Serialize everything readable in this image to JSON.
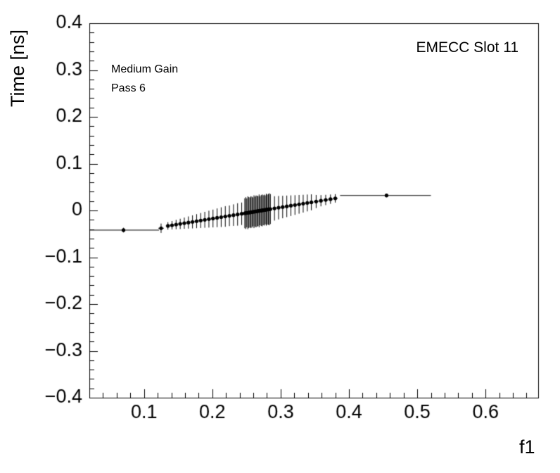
{
  "chart_data": {
    "type": "scatter",
    "title": "",
    "xlabel": "f1",
    "ylabel": "Time [ns]",
    "annotations": {
      "corner": "EMECC Slot 11",
      "line1": "Medium Gain",
      "line2": "Pass 6"
    },
    "legend": "none",
    "grid": false,
    "xlim": [
      0.02,
      0.677
    ],
    "ylim": [
      -0.4,
      0.4
    ],
    "x_ticks": {
      "values": [
        0.1,
        0.2,
        0.3,
        0.4,
        0.5,
        0.6
      ],
      "labels": [
        "0.1",
        "0.2",
        "0.3",
        "0.4",
        "0.5",
        "0.6"
      ]
    },
    "y_ticks": {
      "values": [
        0.4,
        0.3,
        0.2,
        0.1,
        0,
        -0.1,
        -0.2,
        -0.3,
        -0.4
      ],
      "labels": [
        "0.4",
        "0.3",
        "0.2",
        "0.1",
        "0",
        "−0.1",
        "−0.2",
        "−0.3",
        "−0.4"
      ]
    },
    "x_minor_step": 0.02,
    "y_minor_step": 0.02,
    "colors": {
      "marker": "#000000",
      "error_bar": "#000000",
      "axis": "#000000",
      "background": "#ffffff"
    },
    "point_columns": [
      "x",
      "y",
      "ey",
      "exl",
      "exh"
    ],
    "points": [
      [
        0.07,
        -0.042,
        0.005,
        0.05,
        0.052
      ],
      [
        0.125,
        -0.038,
        0.01,
        0.004,
        0.004
      ],
      [
        0.135,
        -0.033,
        0.008,
        0.003,
        0.003
      ],
      [
        0.141,
        -0.0316,
        0.009,
        0.003,
        0.003
      ],
      [
        0.147,
        -0.0301,
        0.01,
        0.003,
        0.003
      ],
      [
        0.153,
        -0.0287,
        0.011,
        0.003,
        0.003
      ],
      [
        0.159,
        -0.0272,
        0.012,
        0.003,
        0.003
      ],
      [
        0.165,
        -0.0258,
        0.013,
        0.003,
        0.003
      ],
      [
        0.171,
        -0.0244,
        0.014,
        0.003,
        0.003
      ],
      [
        0.177,
        -0.0229,
        0.015,
        0.003,
        0.003
      ],
      [
        0.183,
        -0.0215,
        0.016,
        0.003,
        0.003
      ],
      [
        0.189,
        -0.02,
        0.017,
        0.003,
        0.003
      ],
      [
        0.195,
        -0.0186,
        0.018,
        0.003,
        0.003
      ],
      [
        0.201,
        -0.0172,
        0.019,
        0.003,
        0.003
      ],
      [
        0.207,
        -0.0157,
        0.02,
        0.003,
        0.003
      ],
      [
        0.213,
        -0.0143,
        0.021,
        0.003,
        0.003
      ],
      [
        0.219,
        -0.0128,
        0.022,
        0.003,
        0.003
      ],
      [
        0.225,
        -0.0114,
        0.022,
        0.003,
        0.003
      ],
      [
        0.231,
        -0.01,
        0.023,
        0.003,
        0.003
      ],
      [
        0.237,
        -0.0085,
        0.024,
        0.003,
        0.003
      ],
      [
        0.243,
        -0.0071,
        0.024,
        0.003,
        0.003
      ],
      [
        0.2475,
        -0.006,
        0.032,
        0.0008,
        0.0008
      ],
      [
        0.249,
        -0.0056,
        0.034,
        0.0008,
        0.0008
      ],
      [
        0.2505,
        -0.0053,
        0.031,
        0.0008,
        0.0008
      ],
      [
        0.252,
        -0.0049,
        0.035,
        0.0008,
        0.0008
      ],
      [
        0.2535,
        -0.0045,
        0.033,
        0.0008,
        0.0008
      ],
      [
        0.255,
        -0.0042,
        0.032,
        0.0008,
        0.0008
      ],
      [
        0.2565,
        -0.0038,
        0.034,
        0.0008,
        0.0008
      ],
      [
        0.258,
        -0.0035,
        0.033,
        0.0008,
        0.0008
      ],
      [
        0.2595,
        -0.0031,
        0.031,
        0.0008,
        0.0008
      ],
      [
        0.261,
        -0.0027,
        0.035,
        0.0008,
        0.0008
      ],
      [
        0.2625,
        -0.0024,
        0.032,
        0.0008,
        0.0008
      ],
      [
        0.264,
        -0.002,
        0.034,
        0.0008,
        0.0008
      ],
      [
        0.2655,
        -0.0017,
        0.033,
        0.0008,
        0.0008
      ],
      [
        0.267,
        -0.0013,
        0.032,
        0.0008,
        0.0008
      ],
      [
        0.2685,
        -0.0009,
        0.035,
        0.0008,
        0.0008
      ],
      [
        0.27,
        -0.0006,
        0.031,
        0.0008,
        0.0008
      ],
      [
        0.2715,
        -0.0002,
        0.033,
        0.0008,
        0.0008
      ],
      [
        0.273,
        0.0001,
        0.034,
        0.0008,
        0.0008
      ],
      [
        0.2745,
        0.0005,
        0.032,
        0.0008,
        0.0008
      ],
      [
        0.276,
        0.0008,
        0.033,
        0.0008,
        0.0008
      ],
      [
        0.2775,
        0.0012,
        0.031,
        0.0008,
        0.0008
      ],
      [
        0.279,
        0.0016,
        0.034,
        0.0008,
        0.0008
      ],
      [
        0.2805,
        0.0019,
        0.032,
        0.0008,
        0.0008
      ],
      [
        0.282,
        0.0023,
        0.033,
        0.0008,
        0.0008
      ],
      [
        0.2835,
        0.0026,
        0.034,
        0.0008,
        0.0008
      ],
      [
        0.285,
        0.003,
        0.032,
        0.0008,
        0.0008
      ],
      [
        0.291,
        0.0044,
        0.026,
        0.003,
        0.003
      ],
      [
        0.297,
        0.0059,
        0.025,
        0.003,
        0.003
      ],
      [
        0.303,
        0.0073,
        0.024,
        0.003,
        0.003
      ],
      [
        0.309,
        0.0088,
        0.023,
        0.003,
        0.003
      ],
      [
        0.315,
        0.0102,
        0.022,
        0.003,
        0.003
      ],
      [
        0.321,
        0.0116,
        0.021,
        0.003,
        0.003
      ],
      [
        0.327,
        0.0131,
        0.02,
        0.003,
        0.003
      ],
      [
        0.333,
        0.0145,
        0.019,
        0.003,
        0.003
      ],
      [
        0.339,
        0.016,
        0.018,
        0.003,
        0.003
      ],
      [
        0.345,
        0.0174,
        0.017,
        0.003,
        0.003
      ],
      [
        0.352,
        0.0191,
        0.014,
        0.0035,
        0.0035
      ],
      [
        0.359,
        0.0208,
        0.012,
        0.0035,
        0.0035
      ],
      [
        0.366,
        0.0224,
        0.011,
        0.0035,
        0.0035
      ],
      [
        0.373,
        0.0241,
        0.01,
        0.0035,
        0.0035
      ],
      [
        0.38,
        0.0258,
        0.009,
        0.0035,
        0.0035
      ],
      [
        0.455,
        0.032,
        0.004,
        0.068,
        0.065
      ]
    ]
  }
}
